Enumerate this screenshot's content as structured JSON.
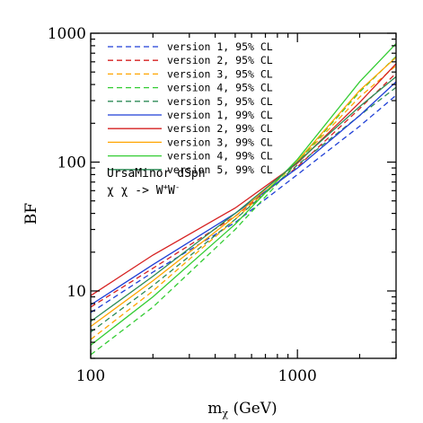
{
  "chart_data": {
    "type": "line",
    "xlabel_main": "m",
    "xlabel_sub": "χ",
    "xlabel_unit": " (GeV)",
    "ylabel": "BF",
    "x_scale": "log",
    "y_scale": "log",
    "xlim": [
      100,
      3000
    ],
    "ylim": [
      3,
      1000
    ],
    "x_ticks": [
      {
        "value": 100,
        "label": "100"
      },
      {
        "value": 1000,
        "label": "1000"
      }
    ],
    "y_ticks": [
      {
        "value": 10,
        "label": "10"
      },
      {
        "value": 100,
        "label": "100"
      },
      {
        "value": 1000,
        "label": "1000"
      }
    ],
    "grid": false,
    "legend_position": "top-left",
    "annotations": {
      "line1": "UrsaMinor dSph",
      "line2_a": "χ χ  -> W",
      "line2_sup1": "+",
      "line2_b": "W",
      "line2_sup2": "-"
    },
    "series": [
      {
        "name": "version 1, 95% CL",
        "color": "#1f3fd6",
        "dashed": true,
        "x": [
          100,
          200,
          500,
          1000,
          2000,
          3000
        ],
        "y": [
          6.8,
          14,
          34,
          80,
          190,
          330
        ]
      },
      {
        "name": "version 2, 95% CL",
        "color": "#d62020",
        "dashed": true,
        "x": [
          100,
          200,
          500,
          1000,
          2000,
          3000
        ],
        "y": [
          7.5,
          15,
          38,
          92,
          260,
          490
        ]
      },
      {
        "name": "version 3, 95% CL",
        "color": "#ffa500",
        "dashed": true,
        "x": [
          100,
          200,
          500,
          1000,
          2000,
          3000
        ],
        "y": [
          4.2,
          10,
          36,
          100,
          320,
          560
        ]
      },
      {
        "name": "version 4, 95% CL",
        "color": "#33cc33",
        "dashed": true,
        "x": [
          100,
          200,
          500,
          1000,
          2000,
          3000
        ],
        "y": [
          3.2,
          7.5,
          30,
          100,
          350,
          660
        ]
      },
      {
        "name": "version 5, 95% CL",
        "color": "#2e8b57",
        "dashed": true,
        "x": [
          100,
          200,
          500,
          1000,
          2000,
          3000
        ],
        "y": [
          4.8,
          11,
          36,
          95,
          230,
          380
        ]
      },
      {
        "name": "version 1, 99% CL",
        "color": "#1f3fd6",
        "dashed": false,
        "x": [
          100,
          200,
          500,
          1000,
          2000,
          3000
        ],
        "y": [
          7.8,
          16,
          40,
          90,
          230,
          420
        ]
      },
      {
        "name": "version 2, 99% CL",
        "color": "#d62020",
        "dashed": false,
        "x": [
          100,
          200,
          500,
          1000,
          2000,
          3000
        ],
        "y": [
          9.2,
          19,
          44,
          98,
          290,
          580
        ]
      },
      {
        "name": "version 3, 99% CL",
        "color": "#ffa500",
        "dashed": false,
        "x": [
          100,
          200,
          500,
          1000,
          2000,
          3000
        ],
        "y": [
          5.3,
          12,
          38,
          102,
          360,
          650
        ]
      },
      {
        "name": "version 4, 99% CL",
        "color": "#33cc33",
        "dashed": false,
        "x": [
          100,
          200,
          500,
          1000,
          2000,
          3000
        ],
        "y": [
          3.8,
          9,
          33,
          105,
          420,
          830
        ]
      },
      {
        "name": "version 5, 99% CL",
        "color": "#2e8b57",
        "dashed": false,
        "x": [
          100,
          200,
          500,
          1000,
          2000,
          3000
        ],
        "y": [
          5.8,
          13,
          40,
          100,
          270,
          460
        ]
      }
    ]
  }
}
